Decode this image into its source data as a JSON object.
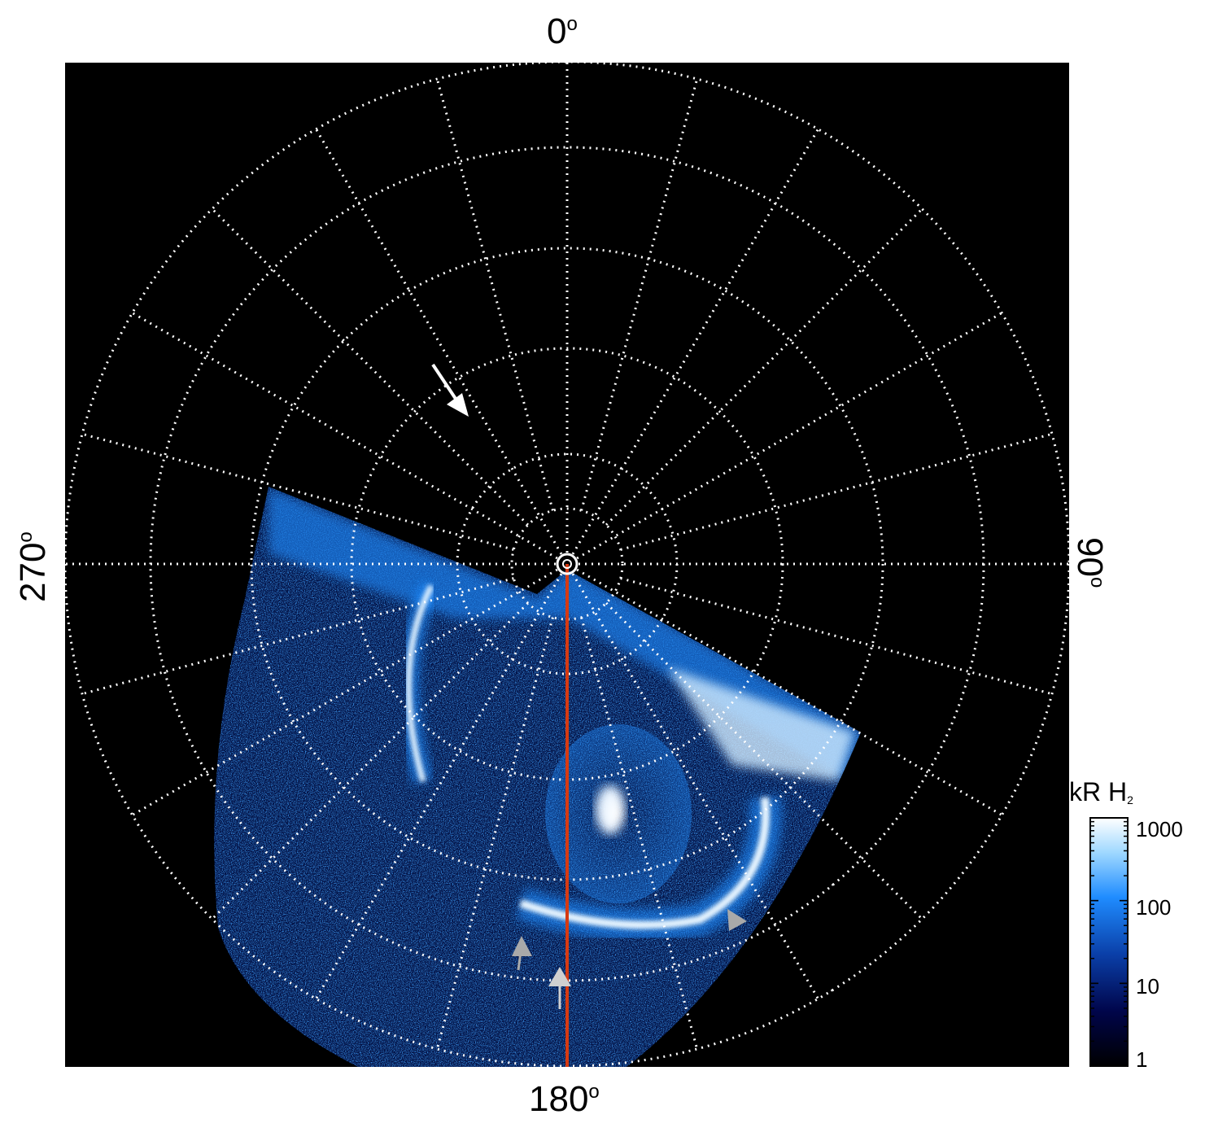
{
  "axes": {
    "top": "0",
    "bottom": "180",
    "left": "270",
    "right": "90",
    "degree_symbol": "o"
  },
  "colorbar": {
    "title": "kR H",
    "title_sub": "2",
    "ticks": [
      "1000",
      "100",
      "10",
      "1"
    ],
    "colors": [
      "#000000",
      "#00054a",
      "#0a3fa8",
      "#1f8cff",
      "#9fd8ff",
      "#ffffff"
    ]
  },
  "colors": {
    "background": "#000000",
    "grid": "#ffffff",
    "meridian_line": "#d63a12",
    "arrow_white": "#ffffff",
    "arrow_grey": "#a9a9a9"
  },
  "icons": [
    "down-right-arrow-icon",
    "up-arrow-icon",
    "up-arrow-icon",
    "right-arrow-icon"
  ]
}
